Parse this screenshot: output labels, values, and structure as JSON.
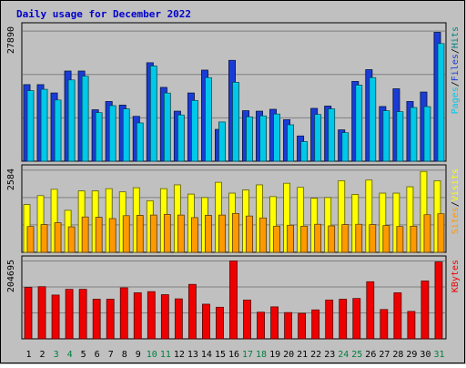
{
  "title": "Daily usage for December 2022",
  "colors": {
    "background": "#c0c0c0",
    "plot_background": "#c0c0c0",
    "grid": "#808080",
    "title": "#0000cc",
    "hits": "#008080",
    "files": "#1a3cd6",
    "pages": "#00c8e8",
    "visits": "#ffff00",
    "sites": "#ff9900",
    "kbytes": "#ee0000",
    "weekday_label": "#000000",
    "weekend_label": "#008040"
  },
  "chart_data": {
    "type": "bar",
    "x": [
      "1",
      "2",
      "3",
      "4",
      "5",
      "6",
      "7",
      "8",
      "9",
      "10",
      "11",
      "12",
      "13",
      "14",
      "15",
      "16",
      "17",
      "18",
      "19",
      "20",
      "21",
      "22",
      "23",
      "24",
      "25",
      "26",
      "27",
      "28",
      "29",
      "30",
      "31"
    ],
    "weekend_days": [
      "3",
      "4",
      "10",
      "11",
      "17",
      "18",
      "24",
      "25",
      "31"
    ],
    "panels": [
      {
        "id": "hits_files_pages",
        "axis_max_label": "27890",
        "ylim": [
          0,
          27890
        ],
        "side_label": [
          {
            "text": "Pages",
            "color": "#00c8e8"
          },
          {
            "text": "/",
            "color": "#000000"
          },
          {
            "text": "Files",
            "color": "#1a3cd6"
          },
          {
            "text": "/",
            "color": "#000000"
          },
          {
            "text": "Hits",
            "color": "#008080"
          }
        ],
        "series": [
          {
            "name": "Hits",
            "color": "#008080",
            "values": [
              16400,
              16400,
              14600,
              19300,
              19300,
              11000,
              12800,
              12000,
              9600,
              21100,
              15800,
              10700,
              14600,
              19500,
              6800,
              21600,
              10800,
              10700,
              11100,
              8900,
              5400,
              11300,
              11800,
              6700,
              17100,
              19600,
              11700,
              15500,
              12800,
              14800,
              27600
            ]
          },
          {
            "name": "Files",
            "color": "#1a3cd6",
            "values": [
              16400,
              16400,
              14600,
              19300,
              19300,
              11000,
              12800,
              12000,
              9600,
              21100,
              15800,
              10700,
              14600,
              19500,
              6800,
              21600,
              10800,
              10700,
              11100,
              8900,
              5400,
              11300,
              11800,
              6700,
              17100,
              19600,
              11700,
              15500,
              12800,
              14800,
              27600
            ]
          },
          {
            "name": "Pages",
            "color": "#00c8e8",
            "values": [
              15100,
              15400,
              13100,
              17400,
              18200,
              10400,
              11900,
              11200,
              8200,
              20400,
              14600,
              9900,
              13000,
              17900,
              8400,
              16900,
              9500,
              9700,
              10100,
              7800,
              4200,
              10000,
              11200,
              6100,
              16300,
              17900,
              10800,
              10600,
              11500,
              11700,
              25200
            ]
          }
        ]
      },
      {
        "id": "visits_sites",
        "axis_max_label": "2584",
        "ylim": [
          0,
          2584
        ],
        "side_label": [
          {
            "text": "Sites",
            "color": "#ff9900"
          },
          {
            "text": "/",
            "color": "#000000"
          },
          {
            "text": "Visits",
            "color": "#ffff00"
          }
        ],
        "series": [
          {
            "name": "Visits",
            "color": "#ffff00",
            "values": [
              1500,
              1780,
              1980,
              1320,
              1930,
              1930,
              2000,
              1900,
              2030,
              1620,
              2000,
              2120,
              1830,
              1720,
              2200,
              1860,
              1960,
              2120,
              1750,
              2170,
              2040,
              1700,
              1720,
              2250,
              1820,
              2270,
              1860,
              1860,
              2060,
              2540,
              2250
            ]
          },
          {
            "name": "Sites",
            "color": "#ff9900",
            "values": [
              810,
              870,
              930,
              800,
              1110,
              1100,
              1060,
              1150,
              1160,
              1170,
              1190,
              1170,
              1090,
              1160,
              1170,
              1220,
              1140,
              1080,
              820,
              850,
              820,
              880,
              830,
              870,
              880,
              870,
              840,
              810,
              820,
              1180,
              1210
            ]
          }
        ]
      },
      {
        "id": "kbytes",
        "axis_max_label": "204695",
        "ylim": [
          0,
          204695
        ],
        "side_label": [
          {
            "text": "KBytes",
            "color": "#ee0000"
          }
        ],
        "series": [
          {
            "name": "KBytes",
            "color": "#ee0000",
            "values": [
              135000,
              137000,
              115000,
              130000,
              130000,
              104000,
              104000,
              134000,
              121000,
              124000,
              116000,
              105000,
              143000,
              91000,
              83000,
              204695,
              102000,
              70000,
              84000,
              69000,
              67000,
              76000,
              102000,
              104000,
              106000,
              150000,
              77000,
              121000,
              72000,
              152000,
              202000
            ]
          }
        ]
      }
    ]
  }
}
